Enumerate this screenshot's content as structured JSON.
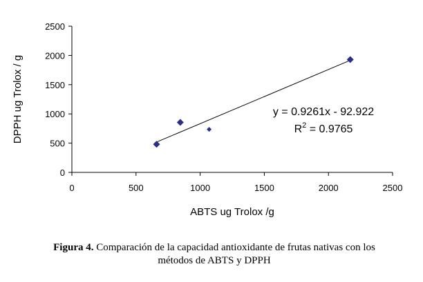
{
  "chart_data": {
    "type": "scatter",
    "xlabel": "ABTS ug Trolox /g",
    "ylabel": "DPPH ug Trolox / g",
    "xlim": [
      0,
      2500
    ],
    "ylim": [
      0,
      2500
    ],
    "x_ticks": [
      0,
      500,
      1000,
      1500,
      2000,
      2500
    ],
    "y_ticks": [
      0,
      500,
      1000,
      1500,
      2000,
      2500
    ],
    "grid": false,
    "points": [
      {
        "x": 660,
        "y": 480
      },
      {
        "x": 845,
        "y": 855
      },
      {
        "x": 1070,
        "y": 735
      },
      {
        "x": 2170,
        "y": 1930
      }
    ],
    "trendline": {
      "slope": 0.9261,
      "intercept": -92.922,
      "x_range": [
        660,
        2170
      ]
    },
    "equation_label": "y = 0.9261x - 92.922",
    "r2_prefix": "R",
    "r2_sup": "2",
    "r2_suffix": " = 0.9765",
    "marker_color": "#2b2e86"
  },
  "caption": {
    "label": "Figura 4.",
    "line1": " Comparación de la capacidad antioxidante de frutas nativas con los",
    "line2": "métodos de ABTS y DPPH"
  }
}
